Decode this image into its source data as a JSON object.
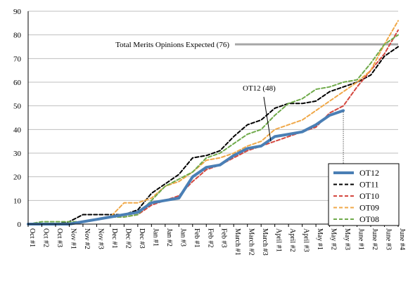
{
  "chart_data": {
    "type": "line",
    "title": "",
    "xlabel": "",
    "ylabel": "",
    "ylim": [
      0,
      90
    ],
    "yticks": [
      0,
      10,
      20,
      30,
      40,
      50,
      60,
      70,
      80,
      90
    ],
    "grid": true,
    "legend_position": "bottom-right",
    "categories": [
      "Oct #1",
      "Oct #2",
      "Oct #3",
      "Nov #1",
      "Nov #2",
      "Nov #3",
      "Dec #1",
      "Dec #2",
      "Dec #3",
      "Jan #1",
      "Jan #2",
      "Jan #3",
      "Feb #1",
      "Feb #2",
      "Feb #3",
      "March #1",
      "March #2",
      "March #3",
      "April #1",
      "April #2",
      "April #3",
      "May #1",
      "May #2",
      "May #3",
      "June #1",
      "June #2",
      "June #3",
      "June #4"
    ],
    "series": [
      {
        "name": "OT12",
        "color": "#4a7fb5",
        "values": [
          0,
          0,
          0,
          0,
          1,
          2,
          3,
          4,
          5,
          9,
          10,
          11,
          20,
          24,
          25,
          29,
          32,
          33,
          37,
          38,
          39,
          42,
          46,
          48,
          null,
          null,
          null,
          null
        ]
      },
      {
        "name": "OT11",
        "color": "#000000",
        "values": [
          0,
          0,
          0,
          1,
          4,
          4,
          4,
          4,
          6,
          13,
          17,
          21,
          28,
          29,
          31,
          37,
          42,
          44,
          49,
          51,
          51,
          52,
          56,
          58,
          60,
          63,
          71,
          75
        ]
      },
      {
        "name": "OT10",
        "color": "#d4473f",
        "values": [
          0,
          0,
          0,
          0,
          1,
          2,
          3,
          3,
          4,
          8,
          10,
          12,
          18,
          23,
          25,
          28,
          31,
          33,
          35,
          37,
          39,
          41,
          47,
          50,
          58,
          65,
          72,
          82
        ]
      },
      {
        "name": "OT09",
        "color": "#f0a848",
        "values": [
          0,
          0,
          0,
          0,
          1,
          2,
          3,
          9,
          9,
          11,
          16,
          18,
          22,
          27,
          28,
          30,
          33,
          35,
          40,
          42,
          44,
          48,
          52,
          56,
          60,
          65,
          76,
          86
        ]
      },
      {
        "name": "OT08",
        "color": "#6faa4a",
        "values": [
          0,
          1,
          1,
          1,
          1,
          2,
          3,
          3,
          4,
          10,
          16,
          19,
          22,
          28,
          30,
          34,
          38,
          40,
          46,
          51,
          53,
          57,
          58,
          60,
          61,
          68,
          76,
          80
        ]
      }
    ],
    "reference_line": {
      "label": "Total Merits Opinions Expected (76)",
      "value": 76
    },
    "annotation": {
      "label": "OT12 (48)",
      "series": "OT12",
      "category": "May #3",
      "value": 48
    }
  }
}
